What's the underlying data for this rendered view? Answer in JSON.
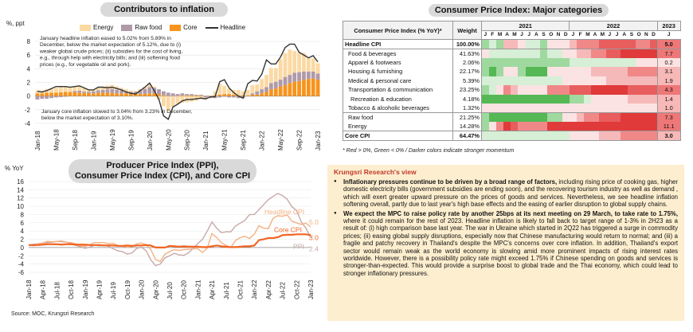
{
  "titles": {
    "contributors": "Contributors to inflation",
    "cpi_major": "Consumer Price Index: Major categories",
    "ppi_line1": "Producer Price Index (PPI),",
    "ppi_line2": "Consumer Price Index (CPI), and Core CPI"
  },
  "colors": {
    "energy": "#fbd9a3",
    "raw_food": "#b09aa8",
    "core": "#f7941d",
    "headline": "#333333",
    "headline_cpi_line": "#f4b183",
    "core_cpi_line": "#f26522",
    "ppi_line": "#c9a9a9",
    "view_bg": "#fdeecf",
    "view_title": "#c0392b"
  },
  "chart_data": [
    {
      "type": "bar",
      "title": "Contributors to inflation",
      "ylabel": "%, ppt",
      "ylim": [
        -4,
        8
      ],
      "yticks": [
        -4,
        -2,
        0,
        2,
        4,
        6,
        8
      ],
      "legend": [
        "Energy",
        "Raw food",
        "Core",
        "Headline"
      ],
      "xtick_labels": [
        "Jan-18",
        "May-18",
        "Sep-18",
        "Jan-19",
        "May-19",
        "Sep-19",
        "Jan-20",
        "May-20",
        "Sep-20",
        "Jan-21",
        "May-21",
        "Sep-21",
        "Jan-22",
        "May-22",
        "Sep-22",
        "Jan-23"
      ],
      "annotations": [
        "January headline inflation eased to 5.02% from 5.89% in December, below the market expectation of 5.12%, due to (i) weaker global crude prices; (ii) subsidies for the cost of living, e.g., through help with electricity bills; and (iii) softening food prices (e.g., for vegetable oil and pork).",
        "January core inflation slowed to 3.04% from 3.23% in December, below the market expectation of 3.10%."
      ],
      "series": [
        {
          "name": "Energy",
          "values": [
            0.45,
            0.4,
            0.5,
            0.6,
            0.7,
            0.8,
            0.7,
            0.6,
            0.65,
            0.7,
            0.55,
            0.3,
            0.2,
            0.3,
            0.45,
            0.55,
            0.6,
            0.5,
            0.4,
            0.3,
            0.2,
            0.1,
            0.2,
            0.3,
            0.5,
            0.2,
            -0.5,
            -1.5,
            -2.2,
            -1.6,
            -1.2,
            -1.0,
            -0.9,
            -0.8,
            -0.7,
            -0.5,
            -0.3,
            0.1,
            0.6,
            1.6,
            1.2,
            0.8,
            0.7,
            0.8,
            0.6,
            0.8,
            1.2,
            1.0,
            1.5,
            1.8,
            2.2,
            2.0,
            3.0,
            3.5,
            3.7,
            3.2,
            2.9,
            2.7,
            2.0,
            1.9,
            1.5
          ]
        },
        {
          "name": "Raw food",
          "values": [
            -0.5,
            -0.4,
            -0.4,
            -0.3,
            -0.2,
            -0.15,
            -0.1,
            0.0,
            0.2,
            0.3,
            0.2,
            0.2,
            0.3,
            0.4,
            0.4,
            0.5,
            0.6,
            0.5,
            0.4,
            0.3,
            0.2,
            0.3,
            0.5,
            0.7,
            0.9,
            0.8,
            0.7,
            0.6,
            0.5,
            0.4,
            0.3,
            0.3,
            0.2,
            0.2,
            0.1,
            0.1,
            -0.2,
            -0.3,
            -0.3,
            -0.2,
            -0.1,
            -0.2,
            -0.2,
            -0.3,
            -0.3,
            0.0,
            0.2,
            0.5,
            0.6,
            0.7,
            0.9,
            1.0,
            1.0,
            1.2,
            1.2,
            1.3,
            1.3,
            1.2,
            1.1,
            1.0,
            0.9
          ]
        },
        {
          "name": "Core",
          "values": [
            0.4,
            0.4,
            0.5,
            0.5,
            0.5,
            0.55,
            0.6,
            0.6,
            0.55,
            0.5,
            0.45,
            0.45,
            0.4,
            0.45,
            0.5,
            0.5,
            0.45,
            0.4,
            0.4,
            0.4,
            0.4,
            0.35,
            0.35,
            0.35,
            0.4,
            0.4,
            0.3,
            0.1,
            0.0,
            0.0,
            0.0,
            0.1,
            0.1,
            0.1,
            0.1,
            0.1,
            0.0,
            0.0,
            0.1,
            0.2,
            0.3,
            0.3,
            0.2,
            0.1,
            0.1,
            0.1,
            0.2,
            0.2,
            0.4,
            0.6,
            1.0,
            1.1,
            1.4,
            1.6,
            1.9,
            2.1,
            2.2,
            2.4,
            2.5,
            2.6,
            2.4
          ]
        },
        {
          "name": "Headline",
          "values": [
            0.7,
            0.6,
            0.8,
            1.1,
            1.4,
            1.4,
            1.4,
            1.3,
            1.4,
            1.5,
            1.2,
            0.9,
            0.9,
            1.3,
            1.3,
            1.2,
            1.3,
            1.1,
            0.9,
            0.6,
            0.4,
            0.3,
            0.8,
            1.3,
            1.9,
            0.8,
            -0.5,
            -2.9,
            -3.4,
            -1.6,
            -1.2,
            -0.7,
            -0.5,
            -0.5,
            -0.4,
            -0.3,
            -0.4,
            -0.1,
            -0.1,
            2.1,
            2.4,
            1.2,
            0.5,
            0.0,
            -0.3,
            1.8,
            2.3,
            2.2,
            3.2,
            5.3,
            4.7,
            4.7,
            5.7,
            7.1,
            7.6,
            7.6,
            6.4,
            6.0,
            5.6,
            5.9,
            5.0
          ]
        }
      ]
    },
    {
      "type": "line",
      "title": "Producer Price Index (PPI), Consumer Price Index (CPI), and Core CPI",
      "ylabel": "% YoY",
      "ylim": [
        -6,
        16
      ],
      "yticks": [
        -6,
        -4,
        -2,
        0,
        2,
        4,
        6,
        8,
        10,
        12,
        14,
        16
      ],
      "xtick_labels": [
        "Jan-18",
        "Apr-18",
        "Jul-18",
        "Oct-18",
        "Jan-19",
        "Apr-19",
        "Jul-19",
        "Oct-19",
        "Jan-20",
        "Apr-20",
        "Jul-20",
        "Oct-20",
        "Jan-21",
        "Apr-21",
        "Jul-21",
        "Oct-21",
        "Jan-22",
        "Apr-22",
        "Jul-22",
        "Oct-22",
        "Jan-23"
      ],
      "series": [
        {
          "name": "Headline CPI",
          "last_label": "5.0",
          "values": [
            0.7,
            0.4,
            0.8,
            1.1,
            1.5,
            1.4,
            1.5,
            1.6,
            1.3,
            1.2,
            0.9,
            0.4,
            0.3,
            0.7,
            1.2,
            1.2,
            1.2,
            0.9,
            1.0,
            0.5,
            0.3,
            0.1,
            0.2,
            0.9,
            1.1,
            0.7,
            -0.5,
            -2.9,
            -3.4,
            -1.6,
            -1.0,
            -0.5,
            -0.7,
            -0.5,
            -0.4,
            -0.3,
            -0.3,
            -1.2,
            -0.1,
            3.4,
            2.4,
            1.2,
            0.5,
            0.0,
            1.7,
            2.4,
            2.7,
            2.2,
            3.2,
            5.3,
            4.7,
            4.6,
            7.1,
            7.7,
            7.6,
            7.9,
            6.4,
            6.0,
            5.6,
            5.9,
            5.0
          ]
        },
        {
          "name": "Core CPI",
          "last_label": "3.0",
          "values": [
            0.6,
            0.6,
            0.6,
            0.7,
            0.8,
            0.8,
            0.8,
            0.7,
            0.8,
            0.8,
            0.7,
            0.7,
            0.7,
            0.6,
            0.6,
            0.6,
            0.5,
            0.5,
            0.5,
            0.4,
            0.4,
            0.5,
            0.4,
            0.5,
            0.5,
            0.6,
            0.5,
            0.0,
            0.0,
            0.0,
            0.4,
            0.3,
            0.2,
            0.3,
            0.2,
            0.2,
            0.2,
            0.1,
            0.1,
            0.3,
            0.5,
            0.3,
            0.2,
            0.1,
            0.1,
            0.2,
            0.3,
            0.3,
            0.5,
            1.8,
            2.0,
            2.3,
            2.3,
            2.5,
            3.0,
            3.1,
            3.1,
            3.2,
            3.2,
            3.2,
            3.0
          ]
        },
        {
          "name": "PPI",
          "last_label": "2.4",
          "values": [
            0.5,
            0.8,
            0.9,
            1.1,
            1.2,
            1.3,
            1.5,
            1.4,
            1.3,
            1.0,
            0.5,
            0.2,
            -0.2,
            0.1,
            0.6,
            0.4,
            0.6,
            0.3,
            -0.3,
            -0.8,
            -1.0,
            -1.6,
            -1.3,
            -0.2,
            0.1,
            -0.8,
            -3.0,
            -4.4,
            -4.0,
            -2.5,
            -2.0,
            -1.4,
            -1.8,
            -1.9,
            -1.3,
            -0.2,
            1.0,
            2.0,
            4.0,
            6.2,
            4.7,
            3.6,
            3.8,
            3.8,
            5.2,
            5.9,
            6.6,
            8.0,
            8.0,
            9.2,
            10.4,
            11.6,
            12.4,
            13.1,
            12.6,
            11.7,
            9.9,
            9.0,
            6.2,
            4.7,
            2.4
          ]
        }
      ]
    },
    {
      "type": "heatmap",
      "title": "Consumer Price Index: Major categories",
      "header": {
        "category": "Consumer Price Index (% YoY)*",
        "weight": "Weight",
        "years": [
          "2021",
          "2022",
          "2023"
        ],
        "months": [
          "J",
          "F",
          "M",
          "A",
          "M",
          "J",
          "J",
          "A",
          "S",
          "O",
          "N",
          "D"
        ],
        "month_2023": "J"
      },
      "rows": [
        {
          "name": "Headline CPI",
          "weight": "100.00%",
          "value": "5.0",
          "bold": true,
          "cells": [
            -2,
            -1,
            -2,
            2,
            2,
            1,
            -1,
            -1,
            -2,
            1,
            1,
            1,
            2,
            3,
            3,
            3,
            4,
            4,
            4,
            4,
            4,
            3,
            3,
            4
          ]
        },
        {
          "name": "Food & beverages",
          "weight": "41.63%",
          "value": "7.7",
          "bold": false,
          "cells": [
            1,
            -1,
            -1,
            -1,
            -1,
            -1,
            -1,
            -1,
            -2,
            -1,
            -1,
            1,
            1,
            2,
            2,
            3,
            3,
            4,
            4,
            5,
            5,
            5,
            5,
            5
          ]
        },
        {
          "name": "Apparel & footwears",
          "weight": "2.06%",
          "value": "0.2",
          "bold": false,
          "cells": [
            -2,
            -2,
            -2,
            -2,
            -2,
            -2,
            -2,
            -2,
            -2,
            -2,
            -2,
            -2,
            -1,
            -1,
            -1,
            -1,
            -1,
            -1,
            -1,
            -1,
            -1,
            1,
            1,
            1
          ]
        },
        {
          "name": "Housing & furnishing",
          "weight": "22.17%",
          "value": "3.1",
          "bold": false,
          "cells": [
            -2,
            -3,
            -2,
            1,
            1,
            -2,
            -3,
            -3,
            -3,
            1,
            1,
            1,
            1,
            1,
            1,
            2,
            2,
            2,
            2,
            2,
            3,
            3,
            3,
            3
          ]
        },
        {
          "name": "Medical & personal care",
          "weight": "5.39%",
          "value": "1.9",
          "bold": false,
          "cells": [
            -1,
            -1,
            -1,
            -1,
            -1,
            -1,
            -1,
            -1,
            -1,
            -1,
            -1,
            1,
            1,
            1,
            1,
            1,
            1,
            2,
            2,
            2,
            2,
            2,
            2,
            2
          ]
        },
        {
          "name": "Transportation & communication",
          "weight": "23.25%",
          "value": "4.3",
          "bold": false,
          "cells": [
            -2,
            -1,
            1,
            3,
            2,
            1,
            1,
            1,
            1,
            3,
            3,
            3,
            4,
            4,
            4,
            5,
            5,
            5,
            5,
            5,
            4,
            4,
            4,
            4
          ]
        },
        {
          "name": "Recreation & education",
          "weight": "4.18%",
          "value": "1.4",
          "bold": false,
          "cells": [
            -3,
            -3,
            -3,
            -3,
            -3,
            -3,
            -3,
            -3,
            -3,
            -3,
            -3,
            -3,
            -2,
            -2,
            -1,
            1,
            1,
            1,
            1,
            1,
            2,
            2,
            2,
            2
          ]
        },
        {
          "name": "Tobacco & alcoholic beverages",
          "weight": "1.32%",
          "value": "1.0",
          "bold": false,
          "cells": [
            1,
            1,
            1,
            1,
            1,
            1,
            1,
            1,
            1,
            1,
            1,
            1,
            1,
            1,
            1,
            1,
            1,
            1,
            1,
            1,
            1,
            1,
            1,
            1
          ]
        },
        {
          "name": "Raw food",
          "weight": "21.25%",
          "value": "7.3",
          "bold": false,
          "cells": [
            -2,
            -3,
            -3,
            -3,
            -3,
            -3,
            -3,
            -3,
            -3,
            -2,
            -2,
            1,
            1,
            2,
            3,
            3,
            4,
            4,
            4,
            5,
            5,
            5,
            5,
            5
          ]
        },
        {
          "name": "Energy",
          "weight": "14.28%",
          "value": "11.1",
          "bold": false,
          "cells": [
            -2,
            1,
            3,
            5,
            4,
            3,
            3,
            3,
            3,
            5,
            5,
            5,
            5,
            5,
            5,
            5,
            5,
            5,
            5,
            5,
            5,
            5,
            5,
            5
          ]
        },
        {
          "name": "Core CPI",
          "weight": "64.47%",
          "value": "3.0",
          "bold": true,
          "cells": [
            -1,
            -1,
            -1,
            -1,
            -1,
            -1,
            -1,
            -1,
            -1,
            -1,
            -1,
            -1,
            1,
            1,
            1,
            1,
            2,
            2,
            2,
            3,
            3,
            3,
            3,
            3
          ]
        }
      ],
      "note": "* Red > 0%, Green < 0% / Darker colors indicate stronger momentum"
    }
  ],
  "view": {
    "title": "Krungsri Research's view",
    "p1_bold": "Inflationary pressures continue to be driven by a broad range of factors,",
    "p1_text": " including rising price of cooking gas, higher domestic electricity bills (government subsidies are ending soon), and the recovering tourism industry as well as demand , which will exert greater upward pressure on the prices of goods and services. Nevertheless, we see headline inflation softening overall, partly due to last year's high base effects and the easing of earlier disruption to global supply chains.",
    "p2_bold": "We expect the MPC to raise policy rate by another 25bps at its next meeting on 29 March, to take rate to 1.75%,",
    "p2_text": " where it could remain for the rest of 2023. Headline inflation is likely to fall back to target range of 1-3% in 2H23 as a result of: (i) high comparison base last year. The war in Ukraine which started in 2Q22 has triggered a surge in commodity prices; (ii) easing global supply disruptions, especially now that Chinese manufacturing would return to normal; and (iii) a fragile and patchy recovery in Thailand's despite the MPC's concerns over core inflation. In addition, Thailand's export sector would remain weak as the world economy is slowing amid more prominent impacts of rising interest rates worldwide. However, there is a possibility policy rate might exceed 1.75% if Chinese spending on goods and services is stronger-than-expected. This would provide a surprise boost to global trade and the Thai economy, which could lead to stronger inflationary pressures."
  },
  "source": "Source: MOC, Krungsri Research"
}
